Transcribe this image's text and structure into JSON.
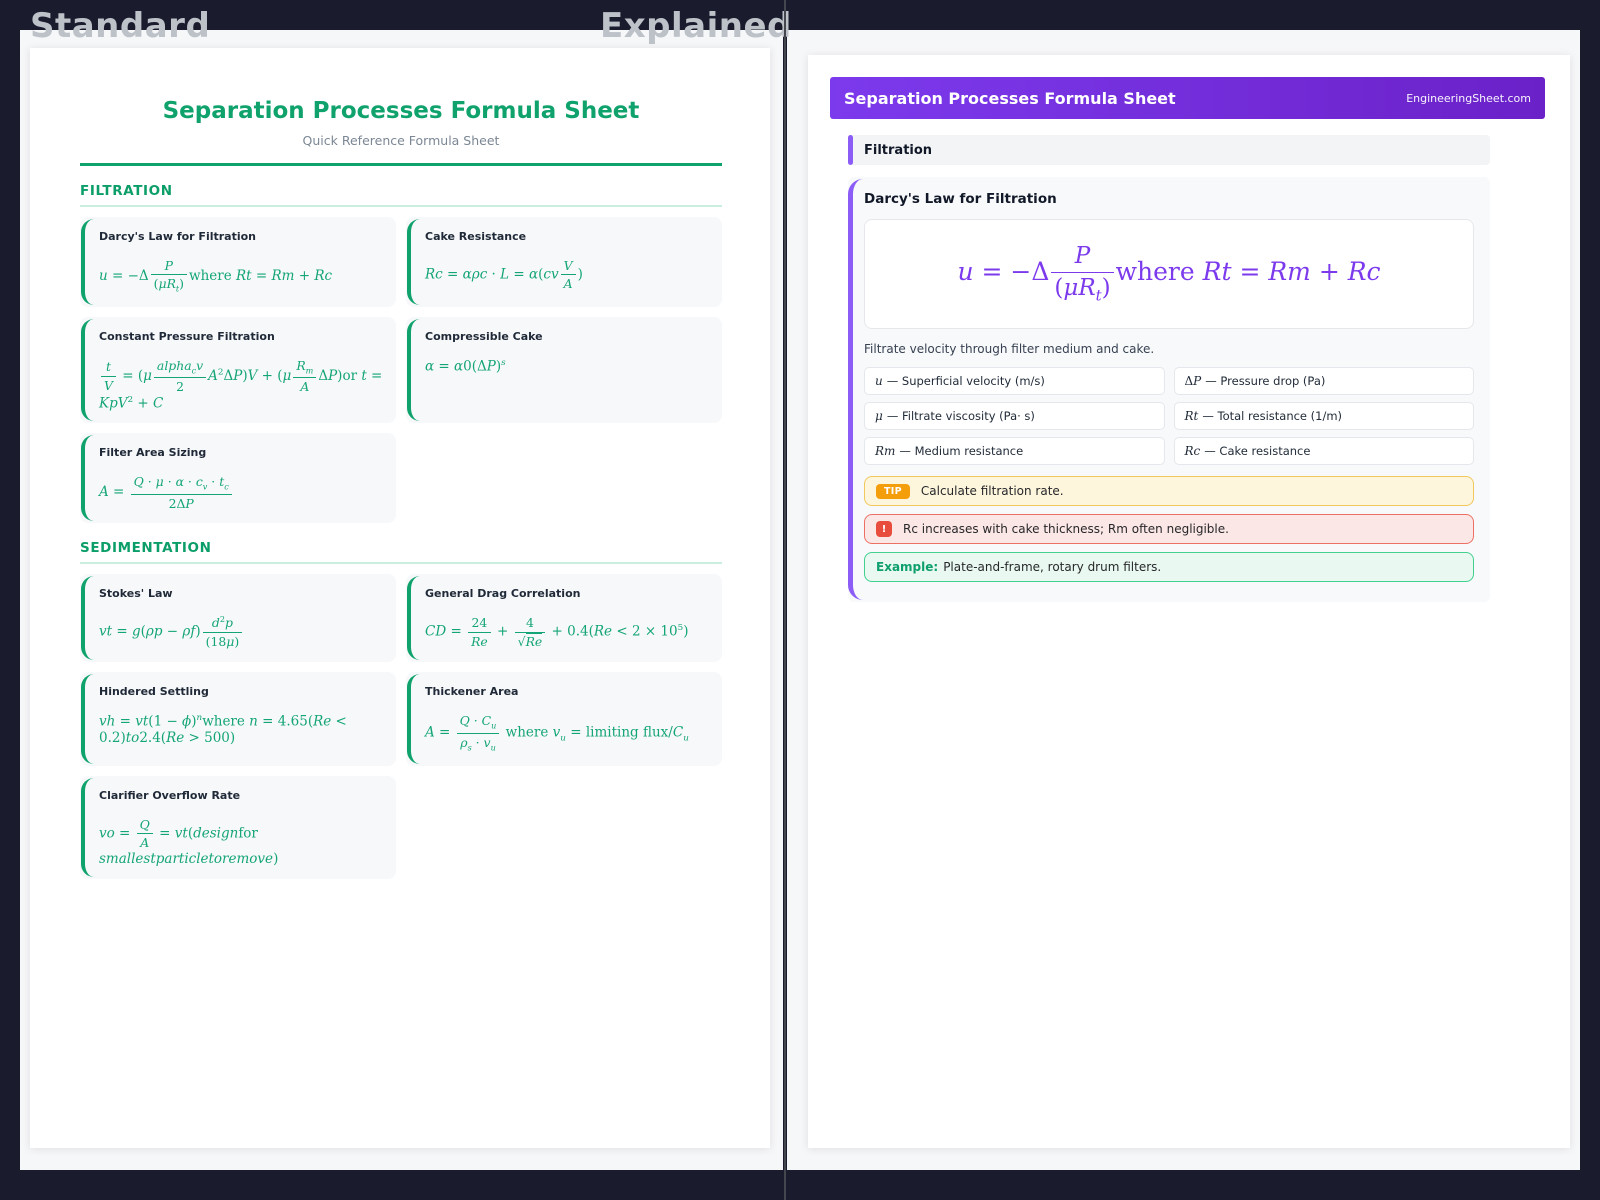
{
  "compare": {
    "left_label": "Standard",
    "right_label": "Explained"
  },
  "colors": {
    "background": "#1a1c2e",
    "panel": "#f6f7f8",
    "page": "#ffffff",
    "green_accent": "#0fa26c",
    "purple_accent": "#7c3aed",
    "purple_bar": "#8b5cf6",
    "tip_badge": "#f59e0b",
    "tip_bg": "#fdf6dd",
    "warning_badge": "#e74c3c",
    "warning_bg": "#fbe7e5",
    "example_bg": "#e9f9f1",
    "example_border": "#41d08e"
  },
  "standard": {
    "title": "Separation Processes Formula Sheet",
    "subtitle": "Quick Reference Formula Sheet",
    "sections": [
      {
        "heading": "FILTRATION",
        "cards": [
          {
            "title": "Darcy's Law for Filtration",
            "formula": "u = −Δ{P||(μR~t~)}«where» Rt = Rm + Rc"
          },
          {
            "title": "Cake Resistance",
            "formula": "Rc = αρc · L = α(cv{V||A})"
          },
          {
            "title": "Constant Pressure Filtration",
            "formula": "{t||V} = (μ{alpha~c~v||2}A^2^ΔP)V + (μ{R~m~||A}ΔP)«or» t = KpV^2^ + C"
          },
          {
            "title": "Compressible Cake",
            "formula": "α = α0(ΔP)^s^"
          },
          {
            "title": "Filter Area Sizing",
            "formula": "A = {Q · μ · α · c~v~ · t~c~||2ΔP}"
          }
        ]
      },
      {
        "heading": "SEDIMENTATION",
        "cards": [
          {
            "title": "Stokes' Law",
            "formula": "vt = g(ρp − ρf){d^2^p||(18μ)}"
          },
          {
            "title": "General Drag Correlation",
            "formula": "CD = {24||Re} + {4||√‹Re›} + 0.4(Re < 2 × 10^5^)"
          },
          {
            "title": "Hindered Settling",
            "formula": "vh = vt(1 − ϕ)^n^«where» n = 4.65(Re < 0.2)to2.4(Re > 500)"
          },
          {
            "title": "Thickener Area",
            "formula": "A = {Q · C~u~||ρ~s~ · v~u~} «where» v~u~ = «limiting flux»/C~u~"
          },
          {
            "title": "Clarifier Overflow Rate",
            "formula": "vo = {Q||A} = vt(design«for» smallestparticletoremove)"
          }
        ]
      }
    ]
  },
  "explained": {
    "header": {
      "title": "Separation Processes Formula Sheet",
      "site": "EngineeringSheet.com"
    },
    "section_label": "Filtration",
    "card": {
      "title": "Darcy's Law for Filtration",
      "formula": "u = −Δ{P||(μR~t~)}«where» Rt = Rm + Rc",
      "description": "Filtrate velocity through filter medium and cake.",
      "variables": [
        {
          "symbol": "u",
          "desc": "— Superficial velocity (m/s)"
        },
        {
          "symbol": "ΔP",
          "desc": "— Pressure drop (Pa)"
        },
        {
          "symbol": "μ",
          "desc": "— Filtrate viscosity (Pa· s)"
        },
        {
          "symbol": "Rt",
          "desc": "— Total resistance (1/m)"
        },
        {
          "symbol": "Rm",
          "desc": "— Medium resistance"
        },
        {
          "symbol": "Rc",
          "desc": "— Cake resistance"
        }
      ],
      "tip": {
        "badge": "TIP",
        "text": "Calculate filtration rate."
      },
      "warning": {
        "badge": "!",
        "text": "Rc increases with cake thickness; Rm often negligible."
      },
      "example": {
        "label": "Example:",
        "text": "Plate-and-frame, rotary drum filters."
      }
    }
  }
}
